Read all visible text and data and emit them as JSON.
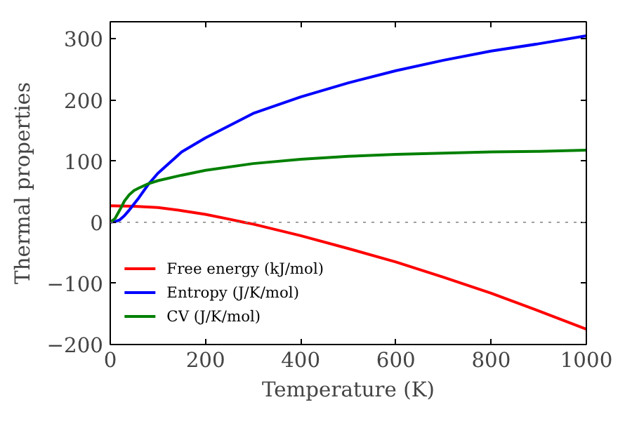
{
  "chart_data": {
    "type": "line",
    "xlabel": "Temperature (K)",
    "ylabel": "Thermal properties",
    "xlim": [
      0,
      1000
    ],
    "ylim": [
      -200,
      328
    ],
    "xticks": [
      0,
      200,
      400,
      600,
      800,
      1000
    ],
    "yticks": [
      -200,
      -100,
      0,
      100,
      200,
      300
    ],
    "grid": false,
    "legend": "bottom left",
    "line_style": "solid",
    "ref_lines": [
      {
        "axis": "y",
        "value": 0,
        "color": "#808080",
        "line_style": "dotted"
      }
    ],
    "series": [
      {
        "name": "Free energy (kJ/mol)",
        "color": "#ff0000",
        "x": [
          0,
          50,
          100,
          150,
          200,
          250,
          280,
          300,
          400,
          500,
          600,
          700,
          800,
          900,
          1000
        ],
        "values": [
          27,
          26,
          24,
          19,
          13,
          5,
          0,
          -3,
          -22,
          -43,
          -65,
          -90,
          -116,
          -145,
          -175
        ]
      },
      {
        "name": "Entropy (J/K/mol)",
        "color": "#0000ff",
        "x": [
          0,
          10,
          20,
          30,
          40,
          60,
          80,
          100,
          150,
          200,
          300,
          400,
          500,
          600,
          700,
          800,
          900,
          1000
        ],
        "values": [
          0,
          1,
          4,
          11,
          20,
          40,
          62,
          80,
          115,
          138,
          178,
          205,
          228,
          248,
          265,
          280,
          292,
          305
        ]
      },
      {
        "name": "CV (J/K/mol)",
        "color": "#008000",
        "x": [
          0,
          10,
          20,
          30,
          40,
          50,
          60,
          80,
          100,
          150,
          200,
          300,
          400,
          500,
          600,
          700,
          800,
          900,
          1000
        ],
        "values": [
          0,
          6,
          20,
          35,
          45,
          52,
          56,
          63,
          68,
          77,
          85,
          96,
          103,
          108,
          111,
          113,
          115,
          116,
          118
        ]
      }
    ]
  }
}
